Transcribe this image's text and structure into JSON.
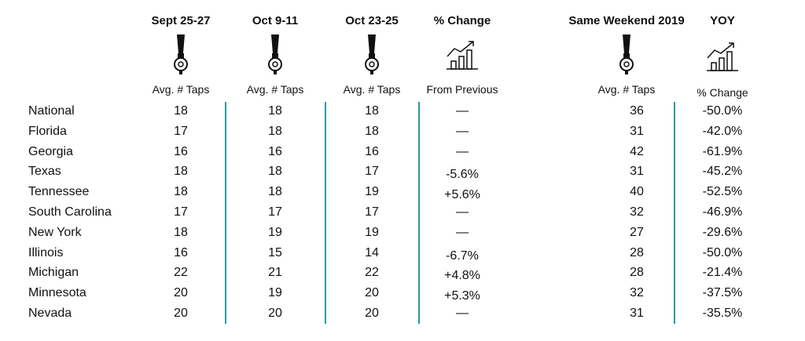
{
  "colors": {
    "divider": "#2a9a9a",
    "text": "#111111"
  },
  "columns": [
    {
      "header": "Sept 25-27",
      "sub": "Avg. # Taps",
      "icon": "beer-tap-icon"
    },
    {
      "header": "Oct 9-11",
      "sub": "Avg. # Taps",
      "icon": "beer-tap-icon"
    },
    {
      "header": "Oct 23-25",
      "sub": "Avg. # Taps",
      "icon": "beer-tap-icon"
    },
    {
      "header": "% Change",
      "sub": "From Previous",
      "icon": "growth-chart-icon"
    },
    {
      "header": "Same Weekend 2019",
      "sub": "Avg. # Taps",
      "icon": "beer-tap-icon"
    },
    {
      "header": "YOY",
      "sub": "% Change",
      "icon": "growth-chart-icon"
    }
  ],
  "rows": [
    {
      "label": "National",
      "values": [
        "18",
        "18",
        "18",
        "—",
        "36",
        "-50.0%"
      ]
    },
    {
      "label": "Florida",
      "values": [
        "17",
        "18",
        "18",
        "—",
        "31",
        "-42.0%"
      ]
    },
    {
      "label": "Georgia",
      "values": [
        "16",
        "16",
        "16",
        "—",
        "42",
        "-61.9%"
      ]
    },
    {
      "label": "Texas",
      "values": [
        "18",
        "18",
        "17",
        "-5.6%",
        "31",
        "-45.2%"
      ]
    },
    {
      "label": "Tennessee",
      "values": [
        "18",
        "18",
        "19",
        "+5.6%",
        "40",
        "-52.5%"
      ]
    },
    {
      "label": "South Carolina",
      "values": [
        "17",
        "17",
        "17",
        "—",
        "32",
        "-46.9%"
      ]
    },
    {
      "label": "New York",
      "values": [
        "18",
        "19",
        "19",
        "—",
        "27",
        "-29.6%"
      ]
    },
    {
      "label": "Illinois",
      "values": [
        "16",
        "15",
        "14",
        "-6.7%",
        "28",
        "-50.0%"
      ]
    },
    {
      "label": "Michigan",
      "values": [
        "22",
        "21",
        "22",
        "+4.8%",
        "28",
        "-21.4%"
      ]
    },
    {
      "label": "Minnesota",
      "values": [
        "20",
        "19",
        "20",
        "+5.3%",
        "32",
        "-37.5%"
      ]
    },
    {
      "label": "Nevada",
      "values": [
        "20",
        "20",
        "20",
        "—",
        "31",
        "-35.5%"
      ]
    }
  ]
}
